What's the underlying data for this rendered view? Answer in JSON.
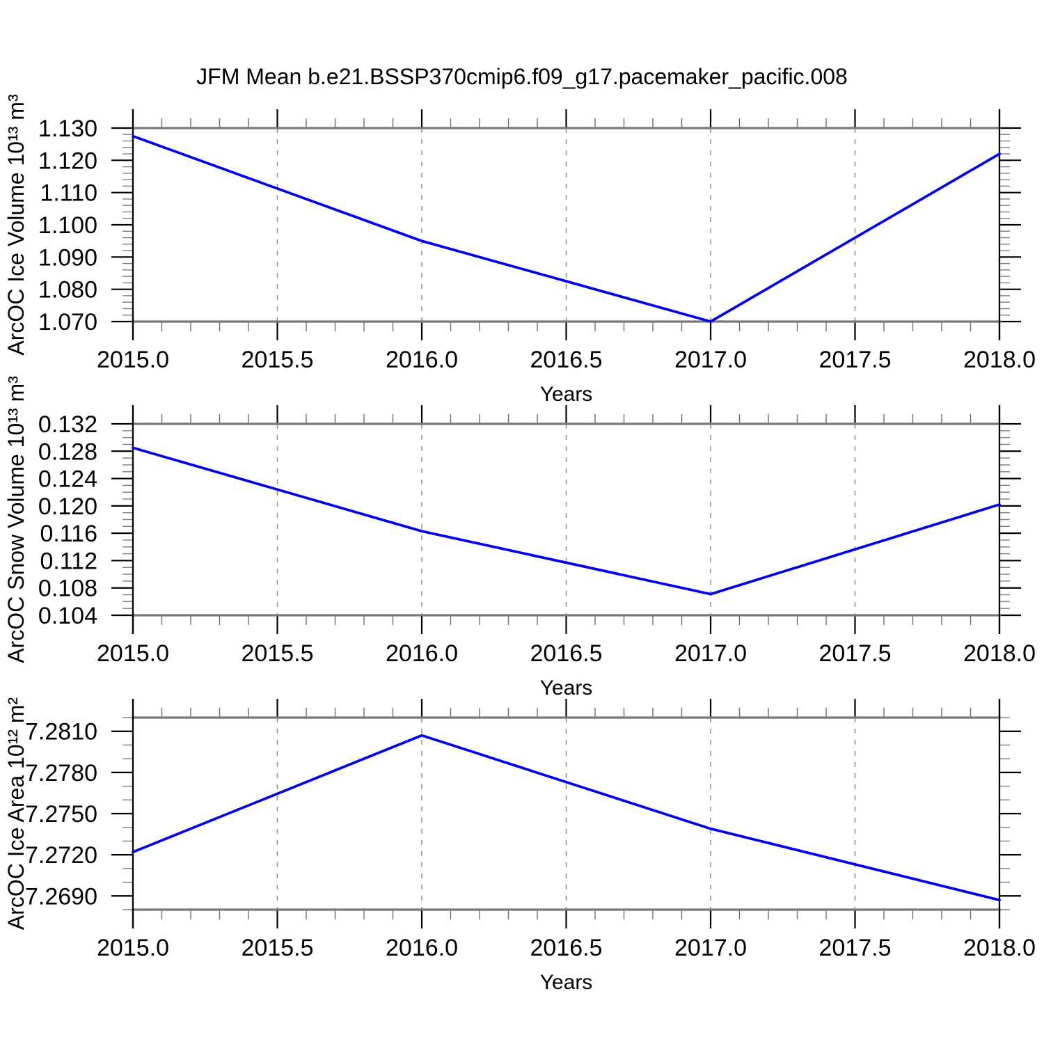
{
  "title": "JFM Mean b.e21.BSSP370cmip6.f09_g17.pacemaker_pacific.008",
  "chart_data": [
    {
      "type": "line",
      "name": "ice-volume",
      "ylabel": "ArcOC Ice Volume 10¹³ m³",
      "xlabel": "Years",
      "x": [
        2015,
        2016,
        2017,
        2018
      ],
      "y": [
        1.1275,
        1.095,
        1.07,
        1.122
      ],
      "xlim": [
        2015,
        2018
      ],
      "ylim": [
        1.07,
        1.13
      ],
      "x_major_step": 0.5,
      "x_minor_step": 0.1,
      "y_major_start": 1.07,
      "y_major_step": 0.01,
      "y_minor_step": 0.002,
      "x_tick_labels": [
        "2015.0",
        "2015.5",
        "2016.0",
        "2016.5",
        "2017.0",
        "2017.5",
        "2018.0"
      ],
      "y_tick_labels": [
        "1.070",
        "1.080",
        "1.090",
        "1.100",
        "1.110",
        "1.120",
        "1.130"
      ],
      "grid": "vertical-dashed",
      "legend": "none",
      "line_color": "#0000ee"
    },
    {
      "type": "line",
      "name": "snow-volume",
      "ylabel": "ArcOC Snow Volume 10¹³ m³",
      "xlabel": "Years",
      "x": [
        2015,
        2016,
        2017,
        2018
      ],
      "y": [
        0.1285,
        0.1163,
        0.1071,
        0.1202
      ],
      "xlim": [
        2015,
        2018
      ],
      "ylim": [
        0.104,
        0.132
      ],
      "x_major_step": 0.5,
      "x_minor_step": 0.1,
      "y_major_start": 0.104,
      "y_major_step": 0.004,
      "y_minor_step": 0.001,
      "x_tick_labels": [
        "2015.0",
        "2015.5",
        "2016.0",
        "2016.5",
        "2017.0",
        "2017.5",
        "2018.0"
      ],
      "y_tick_labels": [
        "0.104",
        "0.108",
        "0.112",
        "0.116",
        "0.120",
        "0.124",
        "0.128",
        "0.132"
      ],
      "grid": "vertical-dashed",
      "legend": "none",
      "line_color": "#0000ee"
    },
    {
      "type": "line",
      "name": "ice-area",
      "ylabel": "ArcOC Ice Area 10¹² m²",
      "xlabel": "Years",
      "x": [
        2015,
        2016,
        2017,
        2018
      ],
      "y": [
        7.2722,
        7.2807,
        7.2739,
        7.2687
      ],
      "xlim": [
        2015,
        2018
      ],
      "ylim": [
        7.268,
        7.282
      ],
      "x_major_step": 0.5,
      "x_minor_step": 0.1,
      "y_major_start": 7.269,
      "y_major_step": 0.003,
      "y_minor_step": 0.001,
      "x_tick_labels": [
        "2015.0",
        "2015.5",
        "2016.0",
        "2016.5",
        "2017.0",
        "2017.5",
        "2018.0"
      ],
      "y_tick_labels": [
        "7.2690",
        "7.2720",
        "7.2750",
        "7.2780",
        "7.2810"
      ],
      "grid": "vertical-dashed",
      "legend": "none",
      "line_color": "#0000ee"
    }
  ]
}
